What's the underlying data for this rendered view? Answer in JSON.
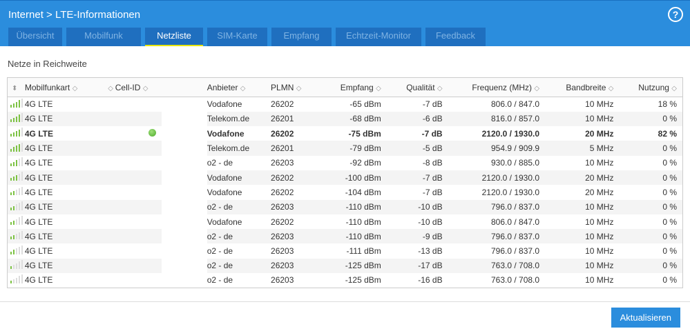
{
  "header": {
    "breadcrumb_parent": "Internet",
    "breadcrumb_sep": ">",
    "breadcrumb_current": "LTE-Informationen",
    "help": "?"
  },
  "tabs": [
    {
      "label": "Übersicht",
      "active": false
    },
    {
      "label": "Mobilfunk",
      "active": false
    },
    {
      "label": "Netzliste",
      "active": true
    },
    {
      "label": "SIM-Karte",
      "active": false
    },
    {
      "label": "Empfang",
      "active": false
    },
    {
      "label": "Echtzeit-Monitor",
      "active": false
    },
    {
      "label": "Feedback",
      "active": false
    }
  ],
  "section_title": "Netze in Reichweite",
  "columns": [
    "Mobilfunkart",
    "Cell-ID",
    "Anbieter",
    "PLMN",
    "Empfang",
    "Qualität",
    "Frequenz (MHz)",
    "Bandbreite",
    "Nutzung"
  ],
  "colors": {
    "accent": "#2b8ddd",
    "signal": "#7cc242"
  },
  "rows": [
    {
      "signal": 4,
      "type": "4G LTE",
      "active": false,
      "provider": "Vodafone",
      "plmn": "26202",
      "rx": "-65 dBm",
      "quality": "-7 dB",
      "freq": "806.0 / 847.0",
      "bw": "10 MHz",
      "usage": "18 %"
    },
    {
      "signal": 4,
      "type": "4G LTE",
      "active": false,
      "provider": "Telekom.de",
      "plmn": "26201",
      "rx": "-68 dBm",
      "quality": "-6 dB",
      "freq": "816.0 / 857.0",
      "bw": "10 MHz",
      "usage": "0 %"
    },
    {
      "signal": 4,
      "type": "4G LTE",
      "active": true,
      "provider": "Vodafone",
      "plmn": "26202",
      "rx": "-75 dBm",
      "quality": "-7 dB",
      "freq": "2120.0 / 1930.0",
      "bw": "20 MHz",
      "usage": "82 %"
    },
    {
      "signal": 4,
      "type": "4G LTE",
      "active": false,
      "provider": "Telekom.de",
      "plmn": "26201",
      "rx": "-79 dBm",
      "quality": "-5 dB",
      "freq": "954.9 / 909.9",
      "bw": "5 MHz",
      "usage": "0 %"
    },
    {
      "signal": 3,
      "type": "4G LTE",
      "active": false,
      "provider": "o2 - de",
      "plmn": "26203",
      "rx": "-92 dBm",
      "quality": "-8 dB",
      "freq": "930.0 / 885.0",
      "bw": "10 MHz",
      "usage": "0 %"
    },
    {
      "signal": 3,
      "type": "4G LTE",
      "active": false,
      "provider": "Vodafone",
      "plmn": "26202",
      "rx": "-100 dBm",
      "quality": "-7 dB",
      "freq": "2120.0 / 1930.0",
      "bw": "20 MHz",
      "usage": "0 %"
    },
    {
      "signal": 2,
      "type": "4G LTE",
      "active": false,
      "provider": "Vodafone",
      "plmn": "26202",
      "rx": "-104 dBm",
      "quality": "-7 dB",
      "freq": "2120.0 / 1930.0",
      "bw": "20 MHz",
      "usage": "0 %"
    },
    {
      "signal": 2,
      "type": "4G LTE",
      "active": false,
      "provider": "o2 - de",
      "plmn": "26203",
      "rx": "-110 dBm",
      "quality": "-10 dB",
      "freq": "796.0 / 837.0",
      "bw": "10 MHz",
      "usage": "0 %"
    },
    {
      "signal": 2,
      "type": "4G LTE",
      "active": false,
      "provider": "Vodafone",
      "plmn": "26202",
      "rx": "-110 dBm",
      "quality": "-10 dB",
      "freq": "806.0 / 847.0",
      "bw": "10 MHz",
      "usage": "0 %"
    },
    {
      "signal": 2,
      "type": "4G LTE",
      "active": false,
      "provider": "o2 - de",
      "plmn": "26203",
      "rx": "-110 dBm",
      "quality": "-9 dB",
      "freq": "796.0 / 837.0",
      "bw": "10 MHz",
      "usage": "0 %"
    },
    {
      "signal": 2,
      "type": "4G LTE",
      "active": false,
      "provider": "o2 - de",
      "plmn": "26203",
      "rx": "-111 dBm",
      "quality": "-13 dB",
      "freq": "796.0 / 837.0",
      "bw": "10 MHz",
      "usage": "0 %"
    },
    {
      "signal": 1,
      "type": "4G LTE",
      "active": false,
      "provider": "o2 - de",
      "plmn": "26203",
      "rx": "-125 dBm",
      "quality": "-17 dB",
      "freq": "763.0 / 708.0",
      "bw": "10 MHz",
      "usage": "0 %"
    },
    {
      "signal": 1,
      "type": "4G LTE",
      "active": false,
      "provider": "o2 - de",
      "plmn": "26203",
      "rx": "-125 dBm",
      "quality": "-16 dB",
      "freq": "763.0 / 708.0",
      "bw": "10 MHz",
      "usage": "0 %"
    }
  ],
  "refresh_button": "Aktualisieren"
}
